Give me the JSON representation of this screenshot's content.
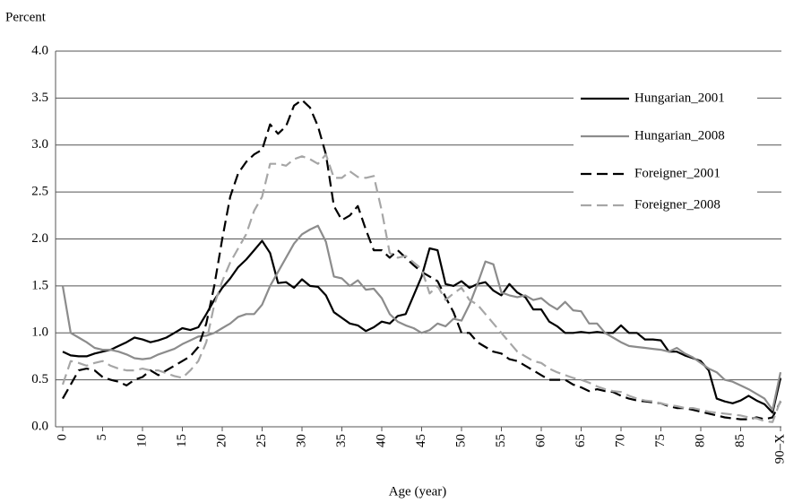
{
  "chart_data": {
    "type": "line",
    "ylabel": "Percent",
    "xlabel": "Age (year)",
    "categories": [
      "0",
      null,
      null,
      null,
      null,
      "5",
      null,
      null,
      null,
      null,
      "10",
      null,
      null,
      null,
      null,
      "15",
      null,
      null,
      null,
      null,
      "20",
      null,
      null,
      null,
      null,
      "25",
      null,
      null,
      null,
      null,
      "30",
      null,
      null,
      null,
      null,
      "35",
      null,
      null,
      null,
      null,
      "40",
      null,
      null,
      null,
      null,
      "45",
      null,
      null,
      null,
      null,
      "50",
      null,
      null,
      null,
      null,
      "55",
      null,
      null,
      null,
      null,
      "60",
      null,
      null,
      null,
      null,
      "65",
      null,
      null,
      null,
      null,
      "70",
      null,
      null,
      null,
      null,
      "75",
      null,
      null,
      null,
      null,
      "80",
      null,
      null,
      null,
      null,
      "85",
      null,
      null,
      null,
      null,
      "90–X"
    ],
    "ylim": [
      0,
      4
    ],
    "yticks": [
      {
        "value": 0,
        "label": "0.0"
      },
      0.5,
      {
        "value": 1,
        "label": "1.0"
      },
      1.5,
      {
        "value": 2,
        "label": "2.0"
      },
      2.5,
      {
        "value": 3,
        "label": "3.0"
      },
      3.5,
      {
        "value": 4,
        "label": "4.0"
      }
    ],
    "grid": true,
    "legend": "upper right",
    "series": [
      {
        "name": "Hungarian_2001",
        "color": "#000000",
        "style": "solid",
        "values": [
          0.8,
          0.76,
          0.75,
          0.75,
          0.78,
          0.8,
          0.82,
          0.86,
          0.9,
          0.95,
          0.93,
          0.9,
          0.92,
          0.95,
          1.0,
          1.05,
          1.03,
          1.06,
          1.2,
          1.35,
          1.48,
          1.58,
          1.7,
          1.78,
          1.88,
          1.98,
          1.85,
          1.53,
          1.54,
          1.48,
          1.57,
          1.5,
          1.49,
          1.4,
          1.22,
          1.16,
          1.1,
          1.08,
          1.02,
          1.06,
          1.12,
          1.1,
          1.18,
          1.2,
          1.4,
          1.6,
          1.9,
          1.88,
          1.52,
          1.5,
          1.55,
          1.48,
          1.52,
          1.54,
          1.45,
          1.4,
          1.52,
          1.43,
          1.38,
          1.25,
          1.25,
          1.12,
          1.07,
          1.0,
          1.0,
          1.01,
          1.0,
          1.01,
          1.0,
          1.0,
          1.08,
          1.0,
          1.0,
          0.93,
          0.93,
          0.92,
          0.8,
          0.8,
          0.76,
          0.73,
          0.7,
          0.6,
          0.3,
          0.27,
          0.25,
          0.28,
          0.33,
          0.28,
          0.24,
          0.15,
          0.52
        ]
      },
      {
        "name": "Hungarian_2008",
        "color": "#8c8c8c",
        "style": "solid",
        "values": [
          1.5,
          1.0,
          0.95,
          0.9,
          0.84,
          0.82,
          0.82,
          0.8,
          0.77,
          0.73,
          0.72,
          0.73,
          0.77,
          0.8,
          0.83,
          0.88,
          0.92,
          0.96,
          0.97,
          1.0,
          1.05,
          1.1,
          1.17,
          1.2,
          1.2,
          1.3,
          1.5,
          1.65,
          1.8,
          1.95,
          2.05,
          2.1,
          2.14,
          1.97,
          1.6,
          1.58,
          1.5,
          1.56,
          1.46,
          1.47,
          1.37,
          1.2,
          1.12,
          1.08,
          1.05,
          1.0,
          1.03,
          1.1,
          1.07,
          1.15,
          1.13,
          1.3,
          1.52,
          1.76,
          1.73,
          1.43,
          1.4,
          1.38,
          1.4,
          1.35,
          1.37,
          1.3,
          1.25,
          1.33,
          1.24,
          1.23,
          1.1,
          1.1,
          1.0,
          0.95,
          0.9,
          0.86,
          0.85,
          0.84,
          0.83,
          0.82,
          0.8,
          0.84,
          0.78,
          0.74,
          0.68,
          0.62,
          0.58,
          0.5,
          0.48,
          0.44,
          0.4,
          0.35,
          0.3,
          0.18,
          0.58
        ]
      },
      {
        "name": "Foreigner_2001",
        "color": "#000000",
        "style": "dashed",
        "values": [
          0.3,
          0.45,
          0.6,
          0.62,
          0.6,
          0.53,
          0.5,
          0.48,
          0.44,
          0.5,
          0.53,
          0.6,
          0.55,
          0.6,
          0.65,
          0.7,
          0.75,
          0.85,
          1.1,
          1.5,
          2.0,
          2.45,
          2.7,
          2.82,
          2.9,
          2.95,
          3.22,
          3.12,
          3.2,
          3.42,
          3.48,
          3.4,
          3.2,
          2.9,
          2.35,
          2.2,
          2.25,
          2.35,
          2.1,
          1.88,
          1.88,
          1.8,
          1.88,
          1.8,
          1.72,
          1.65,
          1.6,
          1.55,
          1.38,
          1.22,
          1.0,
          1.0,
          0.9,
          0.85,
          0.8,
          0.78,
          0.72,
          0.7,
          0.65,
          0.6,
          0.55,
          0.5,
          0.5,
          0.5,
          0.45,
          0.42,
          0.38,
          0.4,
          0.38,
          0.37,
          0.33,
          0.3,
          0.28,
          0.27,
          0.26,
          0.25,
          0.22,
          0.2,
          0.2,
          0.18,
          0.16,
          0.14,
          0.12,
          0.1,
          0.09,
          0.08,
          0.08,
          0.1,
          0.08,
          0.1,
          0.27
        ]
      },
      {
        "name": "Foreigner_2008",
        "color": "#a6a6a6",
        "style": "dashed",
        "values": [
          0.45,
          0.7,
          0.68,
          0.65,
          0.68,
          0.7,
          0.65,
          0.62,
          0.6,
          0.6,
          0.62,
          0.6,
          0.6,
          0.57,
          0.54,
          0.52,
          0.6,
          0.7,
          0.9,
          1.3,
          1.55,
          1.75,
          1.9,
          2.05,
          2.3,
          2.45,
          2.8,
          2.8,
          2.78,
          2.85,
          2.88,
          2.85,
          2.8,
          2.9,
          2.65,
          2.65,
          2.72,
          2.66,
          2.65,
          2.67,
          2.3,
          1.85,
          1.8,
          1.82,
          1.75,
          1.68,
          1.42,
          1.5,
          1.35,
          1.42,
          1.48,
          1.35,
          1.3,
          1.2,
          1.1,
          1.0,
          0.9,
          0.8,
          0.75,
          0.7,
          0.68,
          0.62,
          0.58,
          0.55,
          0.52,
          0.5,
          0.47,
          0.43,
          0.4,
          0.38,
          0.37,
          0.33,
          0.3,
          0.28,
          0.27,
          0.25,
          0.23,
          0.22,
          0.2,
          0.2,
          0.18,
          0.16,
          0.15,
          0.14,
          0.13,
          0.12,
          0.1,
          0.09,
          0.06,
          0.05,
          0.28
        ]
      }
    ]
  }
}
